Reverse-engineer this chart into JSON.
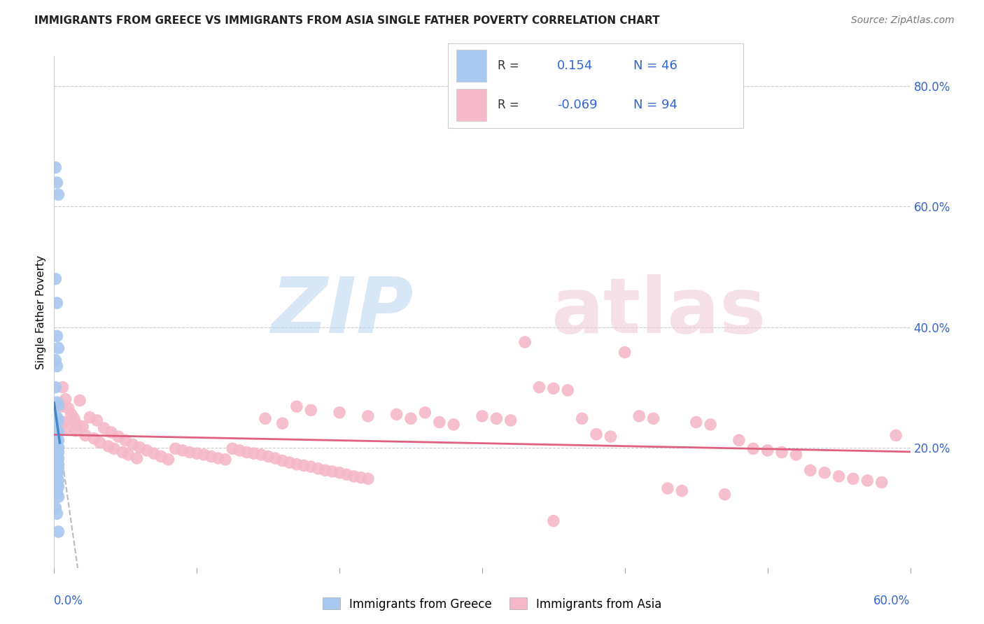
{
  "title": "IMMIGRANTS FROM GREECE VS IMMIGRANTS FROM ASIA SINGLE FATHER POVERTY CORRELATION CHART",
  "source": "Source: ZipAtlas.com",
  "ylabel": "Single Father Poverty",
  "xlim": [
    0.0,
    0.6
  ],
  "ylim": [
    0.0,
    0.85
  ],
  "y_ticks_right": [
    0.2,
    0.4,
    0.6,
    0.8
  ],
  "y_tick_labels_right": [
    "20.0%",
    "40.0%",
    "60.0%",
    "80.0%"
  ],
  "greece_R": 0.154,
  "greece_N": 46,
  "asia_R": -0.069,
  "asia_N": 94,
  "greece_color": "#a8c8f0",
  "asia_color": "#f5b8c8",
  "greece_line_color": "#4488cc",
  "asia_line_color": "#e06080",
  "dashed_line_color": "#bbbbbb",
  "greece_points": [
    [
      0.001,
      0.665
    ],
    [
      0.002,
      0.64
    ],
    [
      0.003,
      0.62
    ],
    [
      0.001,
      0.48
    ],
    [
      0.002,
      0.44
    ],
    [
      0.002,
      0.385
    ],
    [
      0.003,
      0.365
    ],
    [
      0.001,
      0.345
    ],
    [
      0.002,
      0.335
    ],
    [
      0.001,
      0.3
    ],
    [
      0.002,
      0.275
    ],
    [
      0.003,
      0.27
    ],
    [
      0.002,
      0.25
    ],
    [
      0.003,
      0.245
    ],
    [
      0.001,
      0.235
    ],
    [
      0.002,
      0.23
    ],
    [
      0.003,
      0.225
    ],
    [
      0.002,
      0.22
    ],
    [
      0.001,
      0.215
    ],
    [
      0.003,
      0.212
    ],
    [
      0.002,
      0.208
    ],
    [
      0.001,
      0.205
    ],
    [
      0.003,
      0.2
    ],
    [
      0.002,
      0.198
    ],
    [
      0.001,
      0.195
    ],
    [
      0.003,
      0.192
    ],
    [
      0.002,
      0.188
    ],
    [
      0.001,
      0.185
    ],
    [
      0.003,
      0.182
    ],
    [
      0.002,
      0.178
    ],
    [
      0.001,
      0.175
    ],
    [
      0.003,
      0.172
    ],
    [
      0.002,
      0.168
    ],
    [
      0.001,
      0.165
    ],
    [
      0.003,
      0.16
    ],
    [
      0.002,
      0.155
    ],
    [
      0.001,
      0.148
    ],
    [
      0.003,
      0.145
    ],
    [
      0.002,
      0.138
    ],
    [
      0.003,
      0.135
    ],
    [
      0.001,
      0.128
    ],
    [
      0.002,
      0.125
    ],
    [
      0.003,
      0.118
    ],
    [
      0.001,
      0.1
    ],
    [
      0.002,
      0.09
    ],
    [
      0.003,
      0.06
    ]
  ],
  "asia_points": [
    [
      0.006,
      0.3
    ],
    [
      0.008,
      0.28
    ],
    [
      0.01,
      0.265
    ],
    [
      0.012,
      0.255
    ],
    [
      0.014,
      0.248
    ],
    [
      0.007,
      0.242
    ],
    [
      0.016,
      0.238
    ],
    [
      0.009,
      0.232
    ],
    [
      0.018,
      0.278
    ],
    [
      0.005,
      0.268
    ],
    [
      0.025,
      0.25
    ],
    [
      0.03,
      0.245
    ],
    [
      0.02,
      0.235
    ],
    [
      0.035,
      0.232
    ],
    [
      0.015,
      0.228
    ],
    [
      0.04,
      0.225
    ],
    [
      0.022,
      0.22
    ],
    [
      0.045,
      0.218
    ],
    [
      0.028,
      0.215
    ],
    [
      0.05,
      0.212
    ],
    [
      0.032,
      0.208
    ],
    [
      0.055,
      0.205
    ],
    [
      0.038,
      0.202
    ],
    [
      0.06,
      0.2
    ],
    [
      0.042,
      0.198
    ],
    [
      0.065,
      0.195
    ],
    [
      0.048,
      0.192
    ],
    [
      0.07,
      0.19
    ],
    [
      0.052,
      0.188
    ],
    [
      0.075,
      0.185
    ],
    [
      0.058,
      0.182
    ],
    [
      0.08,
      0.18
    ],
    [
      0.085,
      0.198
    ],
    [
      0.09,
      0.195
    ],
    [
      0.095,
      0.192
    ],
    [
      0.1,
      0.19
    ],
    [
      0.105,
      0.188
    ],
    [
      0.11,
      0.185
    ],
    [
      0.115,
      0.182
    ],
    [
      0.12,
      0.18
    ],
    [
      0.125,
      0.198
    ],
    [
      0.13,
      0.195
    ],
    [
      0.135,
      0.192
    ],
    [
      0.14,
      0.19
    ],
    [
      0.145,
      0.188
    ],
    [
      0.15,
      0.185
    ],
    [
      0.155,
      0.182
    ],
    [
      0.16,
      0.178
    ],
    [
      0.165,
      0.175
    ],
    [
      0.17,
      0.172
    ],
    [
      0.175,
      0.17
    ],
    [
      0.18,
      0.168
    ],
    [
      0.185,
      0.165
    ],
    [
      0.19,
      0.162
    ],
    [
      0.195,
      0.16
    ],
    [
      0.2,
      0.158
    ],
    [
      0.205,
      0.155
    ],
    [
      0.21,
      0.152
    ],
    [
      0.215,
      0.15
    ],
    [
      0.22,
      0.148
    ],
    [
      0.148,
      0.248
    ],
    [
      0.16,
      0.24
    ],
    [
      0.17,
      0.268
    ],
    [
      0.18,
      0.262
    ],
    [
      0.2,
      0.258
    ],
    [
      0.22,
      0.252
    ],
    [
      0.24,
      0.255
    ],
    [
      0.25,
      0.248
    ],
    [
      0.26,
      0.258
    ],
    [
      0.27,
      0.242
    ],
    [
      0.28,
      0.238
    ],
    [
      0.3,
      0.252
    ],
    [
      0.31,
      0.248
    ],
    [
      0.32,
      0.245
    ],
    [
      0.33,
      0.375
    ],
    [
      0.34,
      0.3
    ],
    [
      0.35,
      0.298
    ],
    [
      0.36,
      0.295
    ],
    [
      0.37,
      0.248
    ],
    [
      0.38,
      0.222
    ],
    [
      0.39,
      0.218
    ],
    [
      0.4,
      0.358
    ],
    [
      0.41,
      0.252
    ],
    [
      0.42,
      0.248
    ],
    [
      0.43,
      0.132
    ],
    [
      0.44,
      0.128
    ],
    [
      0.45,
      0.242
    ],
    [
      0.46,
      0.238
    ],
    [
      0.47,
      0.122
    ],
    [
      0.48,
      0.212
    ],
    [
      0.49,
      0.198
    ],
    [
      0.5,
      0.195
    ],
    [
      0.51,
      0.192
    ],
    [
      0.52,
      0.188
    ],
    [
      0.53,
      0.162
    ],
    [
      0.54,
      0.158
    ],
    [
      0.55,
      0.152
    ],
    [
      0.56,
      0.148
    ],
    [
      0.57,
      0.145
    ],
    [
      0.58,
      0.142
    ],
    [
      0.59,
      0.22
    ],
    [
      0.35,
      0.078
    ]
  ]
}
